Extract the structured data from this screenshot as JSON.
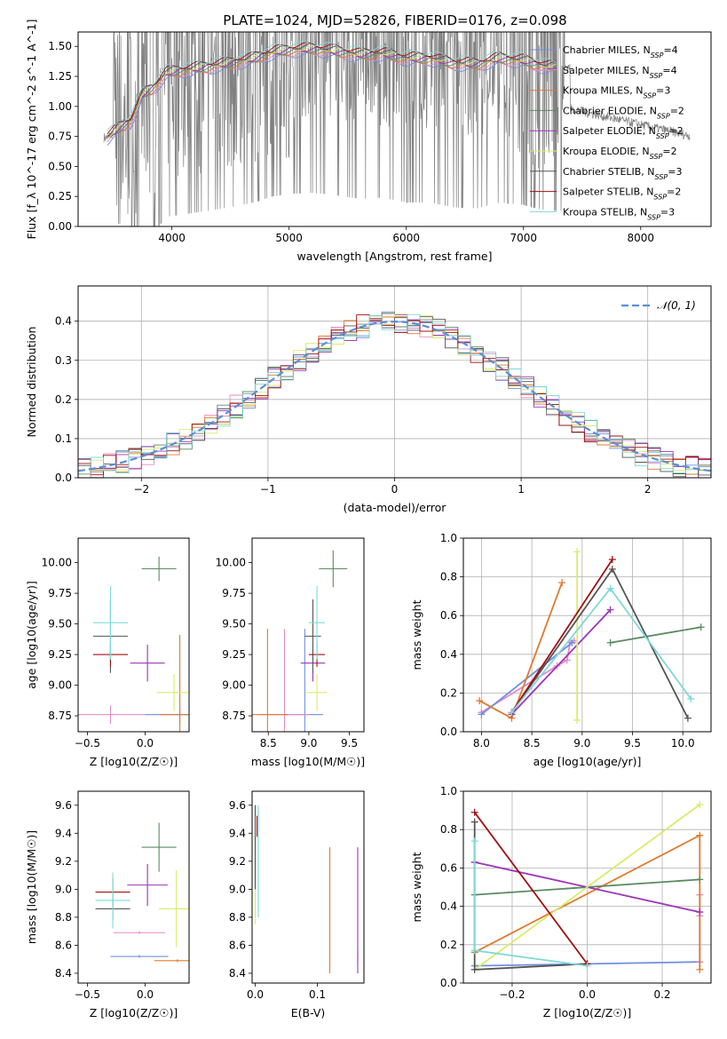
{
  "figure": {
    "title": "PLATE=1024, MJD=52826, FIBERID=0176, z=0.098"
  },
  "models": [
    {
      "name": "Chabrier MILES",
      "nssp": "4",
      "color": "#6f8fe0"
    },
    {
      "name": "Salpeter MILES",
      "nssp": "4",
      "color": "#e58bc4"
    },
    {
      "name": "Kroupa MILES",
      "nssp": "3",
      "color": "#e07a2e"
    },
    {
      "name": "Chabrier ELODIE",
      "nssp": "2",
      "color": "#5a8a62"
    },
    {
      "name": "Salpeter ELODIE",
      "nssp": "2",
      "color": "#9b34b8"
    },
    {
      "name": "Kroupa ELODIE",
      "nssp": "2",
      "color": "#d8ec6a"
    },
    {
      "name": "Chabrier STELIB",
      "nssp": "3",
      "color": "#555555"
    },
    {
      "name": "Salpeter STELIB",
      "nssp": "2",
      "color": "#a01010"
    },
    {
      "name": "Kroupa STELIB",
      "nssp": "3",
      "color": "#7fd8d8"
    }
  ],
  "chart_data": [
    {
      "id": "spectrum",
      "type": "line",
      "xlabel": "wavelength [Angstrom, rest frame]",
      "ylabel": "Flux [f_λ 10^-17 erg cm^-2 s^-1 A^-1]",
      "xlim": [
        3200,
        8600
      ],
      "ylim": [
        0.0,
        1.62
      ],
      "xticks": [
        "4000",
        "5000",
        "6000",
        "7000",
        "8000"
      ],
      "yticks": [
        "0.00",
        "0.25",
        "0.50",
        "0.75",
        "1.00",
        "1.25",
        "1.50"
      ],
      "data_series": {
        "name": "data",
        "color": "#808080"
      },
      "model_wavelength": [
        3450,
        3550,
        3650,
        3750,
        3850,
        3950,
        4100,
        4300,
        4500,
        4700,
        4860,
        5000,
        5200,
        5400,
        5600,
        5800,
        6000,
        6200,
        6400,
        6600,
        6800,
        7000,
        7200
      ],
      "model_flux": [
        0.74,
        0.82,
        0.88,
        1.1,
        1.16,
        1.28,
        1.3,
        1.33,
        1.36,
        1.4,
        1.45,
        1.47,
        1.48,
        1.46,
        1.43,
        1.44,
        1.4,
        1.4,
        1.36,
        1.35,
        1.4,
        1.38,
        1.33
      ],
      "legend_loc": "upper right",
      "grid": false
    },
    {
      "id": "residual-histogram",
      "type": "line",
      "xlabel": "(data-model)/error",
      "ylabel": "Normed distribution",
      "xlim": [
        -2.5,
        2.5
      ],
      "ylim": [
        0.0,
        0.49
      ],
      "xticks": [
        "−2",
        "−1",
        "0",
        "1",
        "2"
      ],
      "yticks": [
        "0.0",
        "0.1",
        "0.2",
        "0.3",
        "0.4"
      ],
      "gaussian_label": "𝒩(0, 1)",
      "gaussian_color": "#5b8ed6",
      "grid": true,
      "legend_loc": "upper right"
    },
    {
      "id": "age-vs-Z",
      "type": "scatter",
      "xlabel": "Z [log10(Z/Z☉)]",
      "ylabel": "age  [log10(age/yr)]",
      "xlim": [
        -0.58,
        0.38
      ],
      "ylim": [
        8.62,
        10.2
      ],
      "xticks": [
        "−0.5",
        "0.0"
      ],
      "yticks": [
        "8.75",
        "9.00",
        "9.25",
        "9.50",
        "9.75",
        "10.00"
      ],
      "points": [
        {
          "model": 0,
          "x": 0.3,
          "y": 8.76,
          "xerr": 0.6,
          "yerr": 0.15
        },
        {
          "model": 1,
          "x": -0.3,
          "y": 8.76,
          "xerr": 0.6,
          "yerr": 0.15
        },
        {
          "model": 2,
          "x": 0.3,
          "y": 8.76,
          "xerr": 0.35,
          "yerr": 1.3
        },
        {
          "model": 3,
          "x": 0.12,
          "y": 9.95,
          "xerr": 0.3,
          "yerr": 0.2
        },
        {
          "model": 4,
          "x": 0.02,
          "y": 9.18,
          "xerr": 0.3,
          "yerr": 0.3
        },
        {
          "model": 5,
          "x": 0.25,
          "y": 8.94,
          "xerr": 0.3,
          "yerr": 0.3
        },
        {
          "model": 6,
          "x": -0.3,
          "y": 9.4,
          "xerr": 0.3,
          "yerr": 0.6
        },
        {
          "model": 7,
          "x": -0.3,
          "y": 9.25,
          "xerr": 0.3,
          "yerr": 0.2
        },
        {
          "model": 8,
          "x": -0.3,
          "y": 9.51,
          "xerr": 0.3,
          "yerr": 0.6
        }
      ]
    },
    {
      "id": "age-vs-mass",
      "type": "scatter",
      "xlabel": "mass [log10(M/M☉)]",
      "ylabel": "",
      "xlim": [
        8.3,
        9.68
      ],
      "ylim": [
        8.62,
        10.2
      ],
      "xticks": [
        "8.5",
        "9.0",
        "9.5"
      ],
      "yticks": [
        "8.75",
        "9.00",
        "9.25",
        "9.50",
        "9.75",
        "10.00"
      ],
      "points": [
        {
          "model": 0,
          "x": 8.95,
          "y": 8.76,
          "xerr": 0.45,
          "yerr": 1.4
        },
        {
          "model": 1,
          "x": 8.7,
          "y": 8.76,
          "xerr": 0.6,
          "yerr": 1.4
        },
        {
          "model": 2,
          "x": 8.49,
          "y": 8.76,
          "xerr": 0.5,
          "yerr": 1.4
        },
        {
          "model": 3,
          "x": 9.3,
          "y": 9.95,
          "xerr": 0.35,
          "yerr": 0.3
        },
        {
          "model": 4,
          "x": 9.05,
          "y": 9.18,
          "xerr": 0.3,
          "yerr": 0.3
        },
        {
          "model": 5,
          "x": 9.1,
          "y": 8.94,
          "xerr": 0.25,
          "yerr": 0.3
        },
        {
          "model": 6,
          "x": 9.05,
          "y": 9.4,
          "xerr": 0.2,
          "yerr": 0.6
        },
        {
          "model": 7,
          "x": 9.1,
          "y": 9.25,
          "xerr": 0.2,
          "yerr": 0.2
        },
        {
          "model": 8,
          "x": 9.1,
          "y": 9.51,
          "xerr": 0.2,
          "yerr": 0.6
        }
      ]
    },
    {
      "id": "massweight-vs-age",
      "type": "line",
      "xlabel": "age  [log10(age/yr)]",
      "ylabel": "mass weight",
      "xlim": [
        7.82,
        10.28
      ],
      "ylim": [
        0.0,
        1.0
      ],
      "xticks": [
        "8.0",
        "8.5",
        "9.0",
        "9.5",
        "10.0"
      ],
      "yticks": [
        "0.0",
        "0.2",
        "0.4",
        "0.6",
        "0.8",
        "1.0"
      ],
      "grid": true,
      "lines": [
        {
          "model": 1,
          "x": [
            8.0,
            8.75,
            8.85,
            8.88,
            8.92
          ],
          "y": [
            0.1,
            0.34,
            0.37,
            0.46,
            0.47
          ]
        },
        {
          "model": 0,
          "x": [
            8.0,
            8.9
          ],
          "y": [
            0.09,
            0.46
          ]
        },
        {
          "model": 2,
          "x": [
            7.98,
            8.3,
            8.8
          ],
          "y": [
            0.16,
            0.07,
            0.77
          ]
        },
        {
          "model": 3,
          "x": [
            9.28,
            10.18
          ],
          "y": [
            0.46,
            0.54
          ]
        },
        {
          "model": 4,
          "x": [
            8.3,
            9.28
          ],
          "y": [
            0.09,
            0.63
          ]
        },
        {
          "model": 5,
          "x": [
            8.95,
            8.95
          ],
          "y": [
            0.06,
            0.93
          ]
        },
        {
          "model": 6,
          "x": [
            8.3,
            9.3,
            10.05
          ],
          "y": [
            0.1,
            0.84,
            0.07
          ]
        },
        {
          "model": 7,
          "x": [
            8.3,
            9.3
          ],
          "y": [
            0.1,
            0.89
          ]
        },
        {
          "model": 8,
          "x": [
            8.3,
            9.28,
            10.08
          ],
          "y": [
            0.1,
            0.74,
            0.17
          ]
        }
      ]
    },
    {
      "id": "mass-vs-Z",
      "type": "scatter",
      "xlabel": "Z [log10(Z/Z☉)]",
      "ylabel": "mass [log10(M/M☉)]",
      "xlim": [
        -0.58,
        0.38
      ],
      "ylim": [
        8.33,
        9.7
      ],
      "xticks": [
        "−0.5",
        "0.0"
      ],
      "yticks": [
        "8.4",
        "8.6",
        "8.8",
        "9.0",
        "9.2",
        "9.4",
        "9.6"
      ],
      "points": [
        {
          "model": 0,
          "x": -0.05,
          "y": 8.52,
          "xerr": 0.5,
          "yerr": 0.02
        },
        {
          "model": 1,
          "x": -0.05,
          "y": 8.69,
          "xerr": 0.45,
          "yerr": 0.02
        },
        {
          "model": 2,
          "x": 0.28,
          "y": 8.49,
          "xerr": 0.4,
          "yerr": 0.02
        },
        {
          "model": 3,
          "x": 0.12,
          "y": 9.3,
          "xerr": 0.3,
          "yerr": 0.35
        },
        {
          "model": 4,
          "x": 0.02,
          "y": 9.03,
          "xerr": 0.35,
          "yerr": 0.3
        },
        {
          "model": 5,
          "x": 0.27,
          "y": 8.86,
          "xerr": 0.3,
          "yerr": 0.55
        },
        {
          "model": 6,
          "x": -0.28,
          "y": 8.86,
          "xerr": 0.3,
          "yerr": 0.15
        },
        {
          "model": 7,
          "x": -0.28,
          "y": 8.98,
          "xerr": 0.3,
          "yerr": 0.2
        },
        {
          "model": 8,
          "x": -0.28,
          "y": 8.92,
          "xerr": 0.3,
          "yerr": 0.4
        }
      ]
    },
    {
      "id": "mass-vs-EBV",
      "type": "scatter",
      "xlabel": "E(B-V)",
      "ylabel": "",
      "xlim": [
        -0.005,
        0.175
      ],
      "ylim": [
        8.33,
        9.7
      ],
      "xticks": [
        "0.0",
        "0.1"
      ],
      "yticks": [
        "8.4",
        "8.6",
        "8.8",
        "9.0",
        "9.2",
        "9.4",
        "9.6"
      ],
      "points": [
        {
          "model": 0,
          "x": 0.165,
          "y": 8.52,
          "yerr": 0.1
        },
        {
          "model": 1,
          "x": 0.0,
          "y": 9.3,
          "yerr": 0.6
        },
        {
          "model": 2,
          "x": 0.12,
          "y": 8.85,
          "yerr": 0.9
        },
        {
          "model": 3,
          "x": 0.0,
          "y": 9.2,
          "yerr": 0.8
        },
        {
          "model": 4,
          "x": 0.165,
          "y": 8.85,
          "yerr": 0.9
        },
        {
          "model": 5,
          "x": 0.0,
          "y": 9.1,
          "yerr": 0.7
        },
        {
          "model": 6,
          "x": 0.0,
          "y": 9.3,
          "yerr": 0.6
        },
        {
          "model": 7,
          "x": 0.003,
          "y": 9.45,
          "yerr": 0.15
        },
        {
          "model": 8,
          "x": 0.005,
          "y": 9.2,
          "yerr": 0.8
        }
      ]
    },
    {
      "id": "massweight-vs-Z",
      "type": "line",
      "xlabel": "Z [log10(Z/Z☉)]",
      "ylabel": "mass weight",
      "xlim": [
        -0.33,
        0.33
      ],
      "ylim": [
        0.0,
        1.0
      ],
      "xticks": [
        "−0.2",
        "0.0",
        "0.2"
      ],
      "yticks": [
        "0.0",
        "0.2",
        "0.4",
        "0.6",
        "0.8",
        "1.0"
      ],
      "grid": true,
      "lines": [
        {
          "model": 0,
          "x": [
            -0.3,
            0.3
          ],
          "y": [
            0.09,
            0.11
          ]
        },
        {
          "model": 1,
          "x": [
            0.3,
            0.3,
            0.3
          ],
          "y": [
            0.11,
            0.35,
            0.46
          ]
        },
        {
          "model": 2,
          "x": [
            -0.3,
            0.3,
            0.3
          ],
          "y": [
            0.16,
            0.77,
            0.07
          ]
        },
        {
          "model": 3,
          "x": [
            -0.3,
            0.3
          ],
          "y": [
            0.46,
            0.54
          ]
        },
        {
          "model": 4,
          "x": [
            -0.3,
            0.3
          ],
          "y": [
            0.63,
            0.37
          ]
        },
        {
          "model": 5,
          "x": [
            -0.3,
            0.3
          ],
          "y": [
            0.07,
            0.93
          ]
        },
        {
          "model": 6,
          "x": [
            -0.3,
            -0.3,
            0.0
          ],
          "y": [
            0.84,
            0.07,
            0.1
          ]
        },
        {
          "model": 7,
          "x": [
            -0.3,
            0.0
          ],
          "y": [
            0.89,
            0.1
          ]
        },
        {
          "model": 8,
          "x": [
            -0.3,
            -0.3,
            0.0
          ],
          "y": [
            0.74,
            0.17,
            0.09
          ]
        }
      ]
    }
  ]
}
